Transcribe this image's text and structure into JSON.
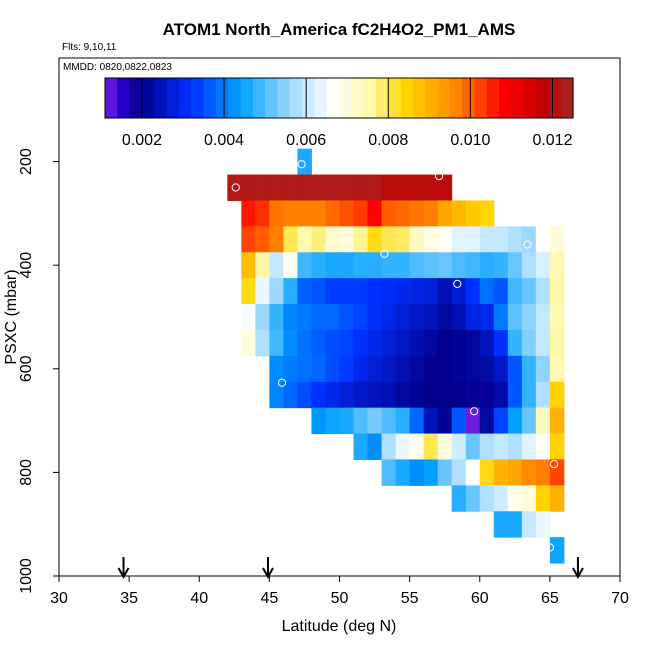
{
  "chart_data": {
    "type": "heatmap",
    "title": "ATOM1 North_America fC2H4O2_PM1_AMS",
    "flights_label": "Flts: 9,10,11",
    "dates_label": "MMDD: 0820,0822,0823",
    "xlabel": "Latitude (deg N)",
    "ylabel": "PSXC (mbar)",
    "xlim": [
      30,
      70
    ],
    "ylim": [
      1000,
      0
    ],
    "x_ticks": [
      30,
      35,
      40,
      45,
      50,
      55,
      60,
      65,
      70
    ],
    "y_ticks": [
      200,
      400,
      600,
      800,
      1000
    ],
    "colorbar": {
      "range": [
        0.0011,
        0.0125
      ],
      "ticks": [
        0.002,
        0.004,
        0.006,
        0.008,
        0.01,
        0.012
      ],
      "tick_labels": [
        "0.002",
        "0.004",
        "0.006",
        "0.008",
        "0.010",
        "0.012"
      ]
    },
    "lat_bins": {
      "start": 42,
      "width": 1
    },
    "pressure_bins": {
      "start": 150,
      "width": 50
    },
    "rows": [
      {
        "p": 200,
        "lat0": 47,
        "values": [
          0.0046
        ]
      },
      {
        "p": 250,
        "lat0": 42,
        "values": [
          0.0122,
          0.0122,
          0.0122,
          0.0122,
          0.0122,
          0.0122,
          0.0122,
          0.0122,
          0.0122,
          0.0122,
          0.0122,
          0.012,
          0.012,
          0.012,
          0.012,
          0.012
        ]
      },
      {
        "p": 300,
        "lat0": 43,
        "values": [
          0.0106,
          0.0104,
          0.0098,
          0.0097,
          0.0097,
          0.0097,
          0.0099,
          0.0101,
          0.0103,
          0.0108,
          0.01,
          0.0099,
          0.0098,
          0.0097,
          0.0092,
          0.0089,
          0.0086,
          0.0084
        ]
      },
      {
        "p": 350,
        "lat0": 43,
        "values": [
          0.0102,
          0.01,
          0.0097,
          0.008,
          0.0075,
          0.0078,
          0.0072,
          0.007,
          0.0077,
          0.0083,
          0.008,
          0.0079,
          0.0073,
          0.0069,
          0.0067,
          0.0063,
          0.0063,
          0.006,
          0.006,
          0.0058,
          0.0056,
          0.0066,
          0.007
        ]
      },
      {
        "p": 400,
        "lat0": 43,
        "values": [
          0.0088,
          0.0076,
          0.006,
          0.0067,
          0.0049,
          0.0047,
          0.0046,
          0.0046,
          0.0047,
          0.0047,
          0.0048,
          0.0048,
          0.005,
          0.0051,
          0.0052,
          0.005,
          0.0049,
          0.0047,
          0.0048,
          0.0052,
          0.0058,
          0.0062,
          0.0075
        ]
      },
      {
        "p": 450,
        "lat0": 43,
        "values": [
          0.0083,
          0.0064,
          0.0056,
          0.0047,
          0.0037,
          0.0036,
          0.0033,
          0.0033,
          0.0033,
          0.0032,
          0.0031,
          0.003,
          0.0029,
          0.0028,
          0.0024,
          0.0027,
          0.0032,
          0.0039,
          0.0036,
          0.0049,
          0.0052,
          0.0058,
          0.0076
        ]
      },
      {
        "p": 500,
        "lat0": 43,
        "values": [
          0.0065,
          0.0056,
          0.0048,
          0.0041,
          0.004,
          0.0038,
          0.0038,
          0.0036,
          0.0034,
          0.0032,
          0.003,
          0.0028,
          0.0026,
          0.0025,
          0.0022,
          0.0024,
          0.0029,
          0.003,
          0.004,
          0.0051,
          0.0055,
          0.006,
          0.0075
        ]
      },
      {
        "p": 550,
        "lat0": 43,
        "values": [
          0.007,
          0.0058,
          0.0049,
          0.0042,
          0.0039,
          0.0037,
          0.0035,
          0.0034,
          0.0032,
          0.003,
          0.0028,
          0.0026,
          0.0024,
          0.0022,
          0.002,
          0.0021,
          0.0022,
          0.0025,
          0.0032,
          0.0048,
          0.0054,
          0.006,
          0.0076
        ]
      },
      {
        "p": 600,
        "lat0": 45,
        "values": [
          0.0042,
          0.004,
          0.0039,
          0.0038,
          0.0035,
          0.0033,
          0.003,
          0.0028,
          0.0026,
          0.0024,
          0.0022,
          0.002,
          0.002,
          0.0021,
          0.0022,
          0.0023,
          0.0026,
          0.0036,
          0.0048,
          0.0055,
          0.0075
        ]
      },
      {
        "p": 650,
        "lat0": 45,
        "values": [
          0.0041,
          0.0038,
          0.0035,
          0.0032,
          0.003,
          0.0028,
          0.0026,
          0.0025,
          0.0024,
          0.0022,
          0.0021,
          0.002,
          0.002,
          0.002,
          0.0019,
          0.0019,
          0.0023,
          0.0036,
          0.0048,
          0.0058,
          0.0085
        ]
      },
      {
        "p": 700,
        "lat0": 48,
        "values": [
          0.0043,
          0.0045,
          0.0046,
          0.005,
          0.0053,
          0.005,
          0.0047,
          0.0038,
          0.0025,
          0.0021,
          0.0036,
          0.0012,
          0.0022,
          0.0034,
          0.0044,
          0.0052,
          0.0073,
          0.009
        ]
      },
      {
        "p": 750,
        "lat0": 51,
        "values": [
          0.0046,
          0.0042,
          0.0058,
          0.0064,
          0.0068,
          0.008,
          0.007,
          0.0061,
          0.0052,
          0.0058,
          0.006,
          0.0058,
          0.0063,
          0.0067,
          0.0085
        ]
      },
      {
        "p": 800,
        "lat0": 53,
        "values": [
          0.005,
          0.0046,
          0.0042,
          0.0044,
          0.0052,
          0.0058,
          0.0066,
          0.0083,
          0.009,
          0.0092,
          0.0096,
          0.0097,
          0.0102
        ]
      },
      {
        "p": 850,
        "lat0": 58,
        "values": [
          0.0047,
          0.0052,
          0.0058,
          0.0061,
          0.0068,
          0.007,
          0.0085,
          0.009
        ]
      },
      {
        "p": 900,
        "lat0": 61,
        "values": [
          0.0046,
          0.0046,
          0.006,
          0.0064
        ]
      },
      {
        "p": 950,
        "lat0": 65,
        "values": [
          0.0045
        ]
      }
    ],
    "circles": [
      {
        "lat": 47.3,
        "p": 205
      },
      {
        "lat": 51.7,
        "p": 213
      },
      {
        "lat": 57.1,
        "p": 228
      },
      {
        "lat": 42.6,
        "p": 250
      },
      {
        "lat": 49.2,
        "p": 366
      },
      {
        "lat": 53.2,
        "p": 378
      },
      {
        "lat": 63.4,
        "p": 360
      },
      {
        "lat": 58.4,
        "p": 436
      },
      {
        "lat": 45.9,
        "p": 627
      },
      {
        "lat": 59.6,
        "p": 682
      },
      {
        "lat": 65.3,
        "p": 784
      },
      {
        "lat": 65.0,
        "p": 945
      }
    ],
    "arrows_lat": [
      34.6,
      44.9,
      67.0
    ]
  }
}
